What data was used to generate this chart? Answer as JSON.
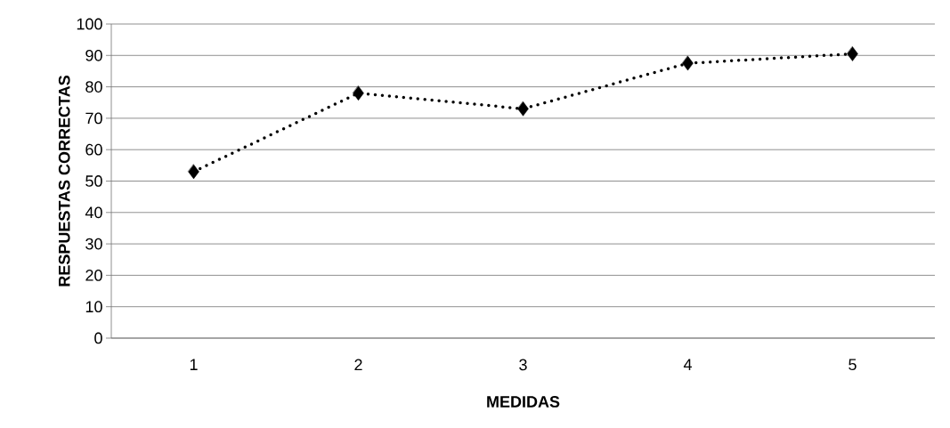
{
  "chart_data": {
    "type": "line",
    "xlabel": "MEDIDAS",
    "ylabel": "RESPUESTAS CORRECTAS",
    "categories": [
      "1",
      "2",
      "3",
      "4",
      "5"
    ],
    "series": [
      {
        "color": "#000000",
        "values": [
          53,
          78,
          73,
          87.5,
          90.5
        ]
      }
    ],
    "ylim": [
      0,
      100
    ],
    "yticks": [
      0,
      10,
      20,
      30,
      40,
      50,
      60,
      70,
      80,
      90,
      100
    ],
    "grid": "y",
    "marker": "diamond",
    "line_style": "dotted"
  }
}
